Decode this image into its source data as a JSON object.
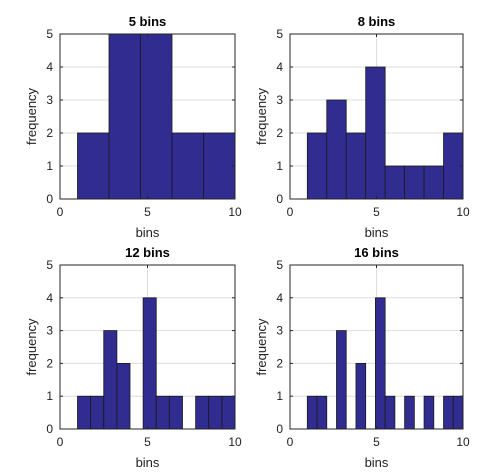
{
  "chart_data": [
    {
      "type": "bar",
      "title": "5 bins",
      "xlabel": "bins",
      "ylabel": "frequency",
      "xlim": [
        0,
        10
      ],
      "ylim": [
        0,
        5
      ],
      "xticks": [
        0,
        5,
        10
      ],
      "yticks": [
        0,
        1,
        2,
        3,
        4,
        5
      ],
      "grid": true,
      "bins": [
        {
          "x0": 1.0,
          "x1": 2.8,
          "value": 2
        },
        {
          "x0": 2.8,
          "x1": 4.6,
          "value": 5
        },
        {
          "x0": 4.6,
          "x1": 6.4,
          "value": 5
        },
        {
          "x0": 6.4,
          "x1": 8.2,
          "value": 2
        },
        {
          "x0": 8.2,
          "x1": 10.0,
          "value": 2
        }
      ]
    },
    {
      "type": "bar",
      "title": "8 bins",
      "xlabel": "bins",
      "ylabel": "frequency",
      "xlim": [
        0,
        10
      ],
      "ylim": [
        0,
        5
      ],
      "xticks": [
        0,
        5,
        10
      ],
      "yticks": [
        0,
        1,
        2,
        3,
        4,
        5
      ],
      "grid": true,
      "bins": [
        {
          "x0": 1.0,
          "x1": 2.125,
          "value": 2
        },
        {
          "x0": 2.125,
          "x1": 3.25,
          "value": 3
        },
        {
          "x0": 3.25,
          "x1": 4.375,
          "value": 2
        },
        {
          "x0": 4.375,
          "x1": 5.5,
          "value": 4
        },
        {
          "x0": 5.5,
          "x1": 6.625,
          "value": 1
        },
        {
          "x0": 6.625,
          "x1": 7.75,
          "value": 1
        },
        {
          "x0": 7.75,
          "x1": 8.875,
          "value": 1
        },
        {
          "x0": 8.875,
          "x1": 10.0,
          "value": 2
        }
      ]
    },
    {
      "type": "bar",
      "title": "12 bins",
      "xlabel": "bins",
      "ylabel": "frequency",
      "xlim": [
        0,
        10
      ],
      "ylim": [
        0,
        5
      ],
      "xticks": [
        0,
        5,
        10
      ],
      "yticks": [
        0,
        1,
        2,
        3,
        4,
        5
      ],
      "grid": true,
      "bins": [
        {
          "x0": 1.0,
          "x1": 1.75,
          "value": 1
        },
        {
          "x0": 1.75,
          "x1": 2.5,
          "value": 1
        },
        {
          "x0": 2.5,
          "x1": 3.25,
          "value": 3
        },
        {
          "x0": 3.25,
          "x1": 4.0,
          "value": 2
        },
        {
          "x0": 4.0,
          "x1": 4.75,
          "value": 0
        },
        {
          "x0": 4.75,
          "x1": 5.5,
          "value": 4
        },
        {
          "x0": 5.5,
          "x1": 6.25,
          "value": 1
        },
        {
          "x0": 6.25,
          "x1": 7.0,
          "value": 1
        },
        {
          "x0": 7.0,
          "x1": 7.75,
          "value": 0
        },
        {
          "x0": 7.75,
          "x1": 8.5,
          "value": 1
        },
        {
          "x0": 8.5,
          "x1": 9.25,
          "value": 1
        },
        {
          "x0": 9.25,
          "x1": 10.0,
          "value": 1
        }
      ]
    },
    {
      "type": "bar",
      "title": "16 bins",
      "xlabel": "bins",
      "ylabel": "frequency",
      "xlim": [
        0,
        10
      ],
      "ylim": [
        0,
        5
      ],
      "xticks": [
        0,
        5,
        10
      ],
      "yticks": [
        0,
        1,
        2,
        3,
        4,
        5
      ],
      "grid": true,
      "bins": [
        {
          "x0": 1.0,
          "x1": 1.5625,
          "value": 1
        },
        {
          "x0": 1.5625,
          "x1": 2.125,
          "value": 1
        },
        {
          "x0": 2.125,
          "x1": 2.6875,
          "value": 0
        },
        {
          "x0": 2.6875,
          "x1": 3.25,
          "value": 3
        },
        {
          "x0": 3.25,
          "x1": 3.8125,
          "value": 0
        },
        {
          "x0": 3.8125,
          "x1": 4.375,
          "value": 2
        },
        {
          "x0": 4.375,
          "x1": 4.9375,
          "value": 0
        },
        {
          "x0": 4.9375,
          "x1": 5.5,
          "value": 4
        },
        {
          "x0": 5.5,
          "x1": 6.0625,
          "value": 1
        },
        {
          "x0": 6.0625,
          "x1": 6.625,
          "value": 0
        },
        {
          "x0": 6.625,
          "x1": 7.1875,
          "value": 1
        },
        {
          "x0": 7.1875,
          "x1": 7.75,
          "value": 0
        },
        {
          "x0": 7.75,
          "x1": 8.3125,
          "value": 1
        },
        {
          "x0": 8.3125,
          "x1": 8.875,
          "value": 0
        },
        {
          "x0": 8.875,
          "x1": 9.4375,
          "value": 1
        },
        {
          "x0": 9.4375,
          "x1": 10.0,
          "value": 1
        }
      ]
    }
  ],
  "colors": {
    "bar_fill": "#312c8f",
    "bar_edge": "#1a1a1a",
    "grid": "#dedede",
    "axis": "#262626"
  }
}
